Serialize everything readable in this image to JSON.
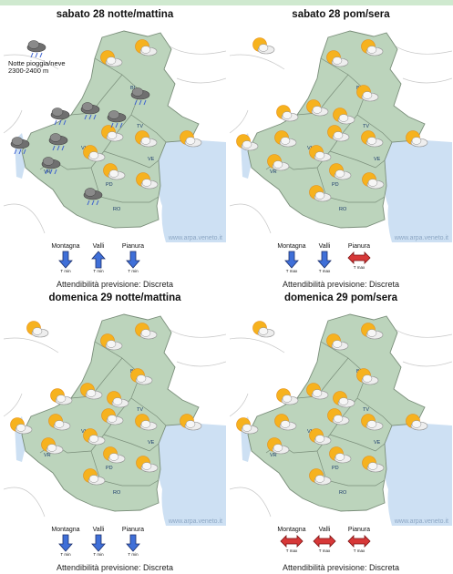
{
  "panels": [
    {
      "title": "sabato 28 notte/mattina",
      "note": [
        "Notte pioggia/neve",
        "2300-2400 m"
      ],
      "icons": [
        "sun-cloud",
        "sun-cloud",
        "cloud-rain",
        "cloud-rain",
        "sun-cloud",
        "sun-cloud",
        "cloud-rain",
        "cloud-rain",
        "cloud-rain",
        "sun-cloud",
        "cloud-rain",
        "cloud-rain",
        "sun-cloud",
        "sun-cloud",
        "cloud-rain",
        "sun-cloud",
        "cloud-rain"
      ],
      "trends": [
        {
          "label": "Montagna",
          "dir": "down",
          "caption": "T min"
        },
        {
          "label": "Valli",
          "dir": "up",
          "caption": "T min"
        },
        {
          "label": "Pianura",
          "dir": "down",
          "caption": "T min"
        }
      ]
    },
    {
      "title": "sabato 28 pom/sera",
      "note": [],
      "icons": [
        "sun-cloud",
        "sun-cloud",
        "sun-cloud",
        "sun-cloud",
        "sun-cloud",
        "sun-cloud",
        "sun-cloud",
        "sun-cloud",
        "sun-cloud",
        "sun-cloud",
        "sun-cloud",
        "sun-cloud",
        "sun-cloud",
        "sun-cloud",
        "sun-cloud",
        "sun-cloud",
        "sun-cloud"
      ],
      "trends": [
        {
          "label": "Montagna",
          "dir": "down",
          "caption": "T max"
        },
        {
          "label": "Valli",
          "dir": "down",
          "caption": "T max"
        },
        {
          "label": "Pianura",
          "dir": "steady",
          "caption": "T max"
        }
      ]
    },
    {
      "title": "domenica 29 notte/mattina",
      "note": [],
      "icons": [
        "sun-cloud",
        "sun-cloud",
        "sun-cloud",
        "sun-cloud",
        "sun-cloud",
        "sun-cloud",
        "sun-cloud",
        "sun-cloud",
        "sun-cloud",
        "sun-cloud",
        "sun-cloud",
        "sun-cloud",
        "sun-cloud",
        "sun-cloud",
        "sun-cloud",
        "sun-cloud",
        "sun-cloud"
      ],
      "trends": [
        {
          "label": "Montagna",
          "dir": "down",
          "caption": "T min"
        },
        {
          "label": "Valli",
          "dir": "down",
          "caption": "T min"
        },
        {
          "label": "Pianura",
          "dir": "down",
          "caption": "T min"
        }
      ]
    },
    {
      "title": "domenica 29 pom/sera",
      "note": [],
      "icons": [
        "sun-cloud",
        "sun-cloud",
        "sun-cloud",
        "sun-cloud",
        "sun-cloud",
        "sun-cloud",
        "sun-cloud",
        "sun-cloud",
        "sun-cloud",
        "sun-cloud",
        "sun-cloud",
        "sun-cloud",
        "sun-cloud",
        "sun-cloud",
        "sun-cloud",
        "sun-cloud",
        "sun-cloud"
      ],
      "trends": [
        {
          "label": "Montagna",
          "dir": "steady",
          "caption": "T max"
        },
        {
          "label": "Valli",
          "dir": "steady",
          "caption": "T max"
        },
        {
          "label": "Pianura",
          "dir": "steady",
          "caption": "T max"
        }
      ]
    }
  ],
  "map_labels": {
    "bl": "BL",
    "tv": "TV",
    "vi": "VI",
    "vr": "VR",
    "pd": "PD",
    "ve": "VE",
    "ro": "RO"
  },
  "credit": "www.arpa.veneto.it",
  "reliability": "Attendibilità previsione: Discreta",
  "colors": {
    "land": "#bcd4bc",
    "sea": "#cde0f3",
    "border": "#7a8e7a",
    "arrow_down": "#3f6fd8",
    "arrow_up": "#3f6fd8",
    "steady": "#d73838"
  }
}
